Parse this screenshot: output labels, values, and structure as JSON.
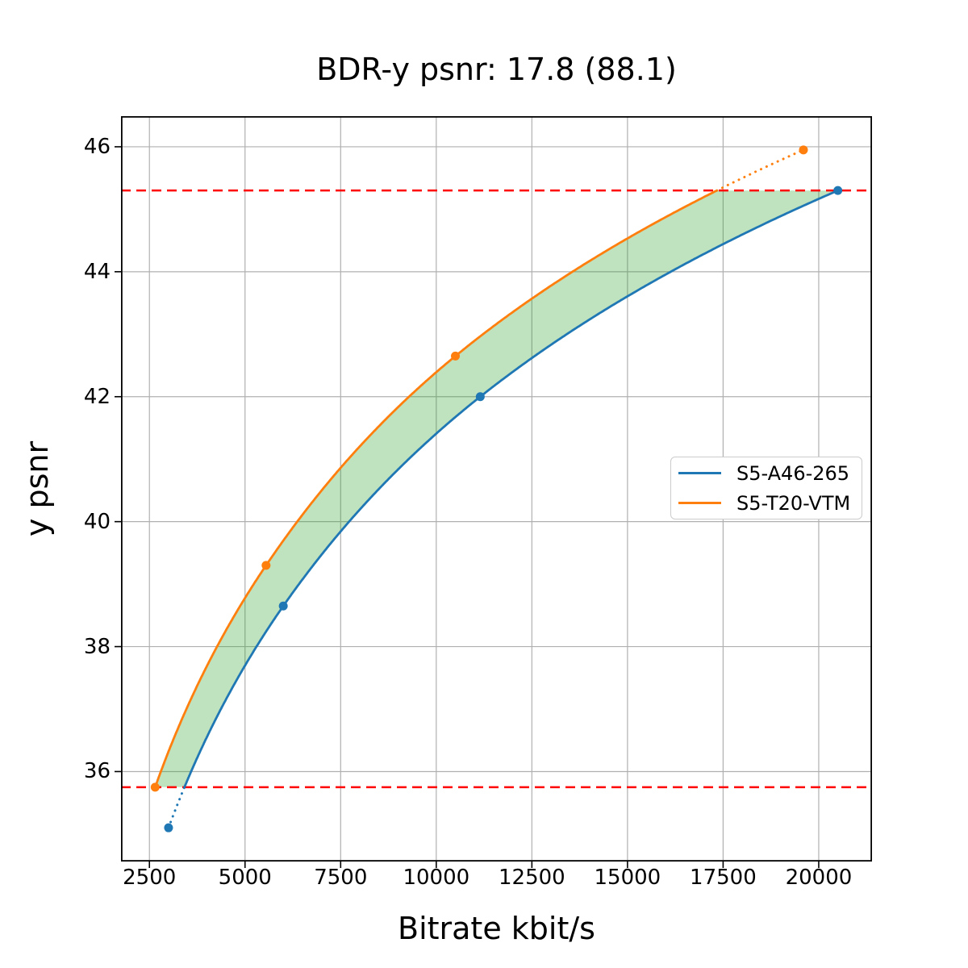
{
  "chart_data": {
    "type": "line",
    "title": "BDR-y psnr: 17.8 (88.1)",
    "xlabel": "Bitrate kbit/s",
    "ylabel": "y psnr",
    "xlim": [
      1757,
      21393
    ],
    "ylim": [
      34.56,
      46.49
    ],
    "xticks": [
      2500,
      5000,
      7500,
      10000,
      12500,
      15000,
      17500,
      20000
    ],
    "yticks": [
      36,
      38,
      40,
      42,
      44,
      46
    ],
    "grid": true,
    "grid_color": "#b0b0b0",
    "legend_position": "center right",
    "series": [
      {
        "name": "S5-A46-265",
        "color": "#1f77b4",
        "x": [
          3000,
          6000,
          11150,
          20500
        ],
        "y": [
          35.1,
          38.65,
          42.0,
          45.3
        ]
      },
      {
        "name": "S5-T20-VTM",
        "color": "#ff7f0e",
        "x": [
          2650,
          5550,
          10500,
          19600
        ],
        "y": [
          35.75,
          39.3,
          42.65,
          45.95
        ]
      }
    ],
    "overlap_lines": {
      "color": "#ff0000",
      "style": "dashed",
      "values": [
        35.75,
        45.3
      ]
    },
    "fill_between": {
      "color": "#2ca02c",
      "opacity": 0.3
    },
    "interpolation": "pchip-log",
    "annotations": "curve portions outside the overlap band are drawn dotted"
  }
}
